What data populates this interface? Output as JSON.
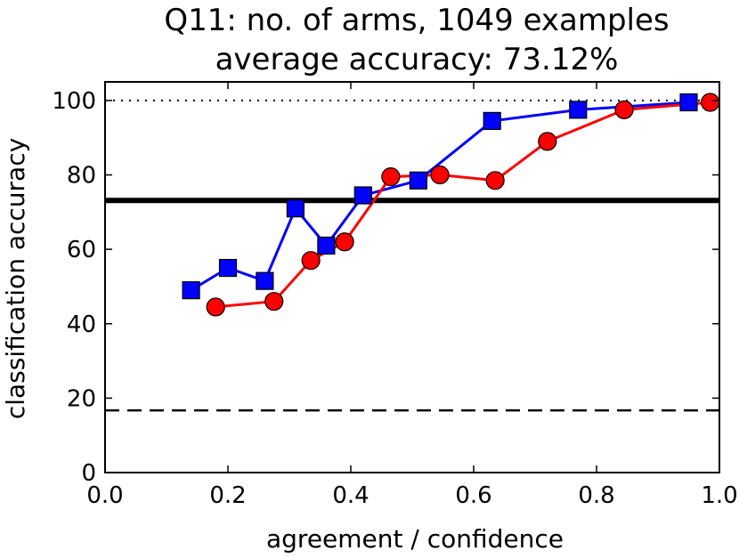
{
  "chart_data": {
    "type": "line",
    "title": "Q11: no. of arms, 1049 examples",
    "subtitle": "average accuracy: 73.12%",
    "xlabel": "agreement / confidence",
    "ylabel": "classification accuracy",
    "xlim": [
      0.0,
      1.0
    ],
    "ylim": [
      0,
      105
    ],
    "xticks": [
      "0.0",
      "0.2",
      "0.4",
      "0.6",
      "0.8",
      "1.0"
    ],
    "yticks": [
      "0",
      "20",
      "40",
      "60",
      "80",
      "100"
    ],
    "xtick_values": [
      0.0,
      0.2,
      0.4,
      0.6,
      0.8,
      1.0
    ],
    "ytick_values": [
      0,
      20,
      40,
      60,
      80,
      100
    ],
    "grid": false,
    "reference_lines": [
      {
        "style": "dotted",
        "y": 100,
        "color": "#000000"
      },
      {
        "style": "solid-thick",
        "y": 73.12,
        "color": "#000000"
      },
      {
        "style": "dashed",
        "y": 16.7,
        "color": "#000000"
      }
    ],
    "series": [
      {
        "marker": "square",
        "color": "#0000ff",
        "x": [
          0.14,
          0.2,
          0.26,
          0.31,
          0.36,
          0.42,
          0.51,
          0.63,
          0.77,
          0.95
        ],
        "y": [
          49,
          55,
          51.5,
          71,
          61,
          74.5,
          78.5,
          94.5,
          97.5,
          99.5
        ]
      },
      {
        "marker": "circle",
        "color": "#ff0000",
        "x": [
          0.18,
          0.275,
          0.335,
          0.39,
          0.465,
          0.545,
          0.635,
          0.72,
          0.845,
          0.985
        ],
        "y": [
          44.5,
          46,
          57,
          62,
          79.5,
          80,
          78.5,
          89,
          97.5,
          99.5
        ]
      }
    ]
  }
}
